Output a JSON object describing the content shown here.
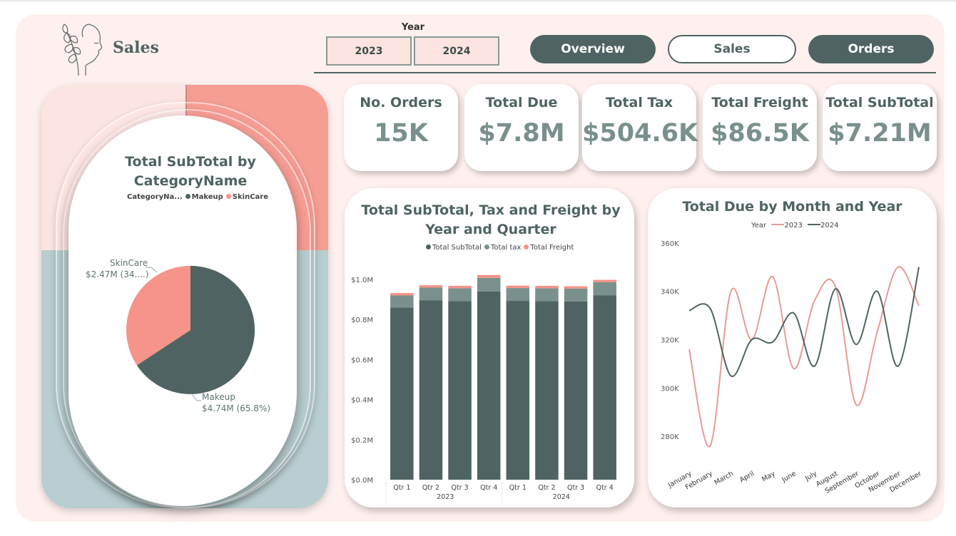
{
  "header": {
    "title": "Sales",
    "year_label": "Year",
    "years": [
      "2023",
      "2024"
    ],
    "nav": [
      {
        "label": "Overview",
        "style": "dark"
      },
      {
        "label": "Sales",
        "style": "light"
      },
      {
        "label": "Orders",
        "style": "dark"
      }
    ]
  },
  "colors": {
    "dark": "#4f6462",
    "mid": "#7a908d",
    "salmon": "#f6938a",
    "pink_bg": "#fdf0ee"
  },
  "kpis": [
    {
      "title": "No. Orders",
      "value": "15K"
    },
    {
      "title": "Total Due",
      "value": "$7.8M"
    },
    {
      "title": "Total Tax",
      "value": "$504.6K"
    },
    {
      "title": "Total Freight",
      "value": "$86.5K"
    },
    {
      "title": "Total SubTotal",
      "value": "$7.21M"
    }
  ],
  "chart_data": [
    {
      "type": "pie",
      "title": "Total SubTotal by CategoryName",
      "legend_title": "CategoryNa...",
      "legend_position": "top",
      "slices": [
        {
          "label": "Makeup",
          "value": 4.74,
          "display": "$4.74M (65.8%)",
          "color": "#4f6462"
        },
        {
          "label": "SkinCare",
          "value": 2.47,
          "display": "$2.47M (34....)",
          "color": "#f6938a"
        }
      ]
    },
    {
      "type": "bar",
      "stacked": true,
      "title": "Total SubTotal, Tax and Freight by Year and Quarter",
      "legend_position": "top",
      "categories": [
        "Qtr 1",
        "Qtr 2",
        "Qtr 3",
        "Qtr 4",
        "Qtr 1",
        "Qtr 2",
        "Qtr 3",
        "Qtr 4"
      ],
      "groups": [
        {
          "label": "2023",
          "span": 4
        },
        {
          "label": "2024",
          "span": 4
        }
      ],
      "series": [
        {
          "name": "Total SubTotal",
          "color": "#4f6462",
          "values": [
            0.86,
            0.895,
            0.892,
            0.94,
            0.893,
            0.892,
            0.89,
            0.92
          ]
        },
        {
          "name": "Total tax",
          "color": "#7a908d",
          "values": [
            0.06,
            0.064,
            0.064,
            0.068,
            0.064,
            0.064,
            0.064,
            0.066
          ]
        },
        {
          "name": "Total Freight",
          "color": "#f6938a",
          "values": [
            0.012,
            0.012,
            0.012,
            0.014,
            0.012,
            0.012,
            0.012,
            0.012
          ]
        }
      ],
      "ylim": [
        0,
        1.0
      ],
      "yticks": [
        "$0.0M",
        "$0.2M",
        "$0.4M",
        "$0.6M",
        "$0.8M",
        "$1.0M"
      ]
    },
    {
      "type": "line",
      "title": "Total Due by Month and Year",
      "legend_title": "Year",
      "legend_position": "top",
      "x": [
        "January",
        "February",
        "March",
        "April",
        "May",
        "June",
        "July",
        "August",
        "September",
        "October",
        "November",
        "December"
      ],
      "series": [
        {
          "name": "2023",
          "color": "#e79b93",
          "values": [
            316,
            276,
            340,
            320,
            346,
            308,
            336,
            342,
            293,
            323,
            350,
            334
          ]
        },
        {
          "name": "2024",
          "color": "#4f6462",
          "values": [
            332,
            333,
            305,
            320,
            319,
            331,
            309,
            341,
            318,
            340,
            309,
            350
          ]
        }
      ],
      "ylim": [
        270,
        362
      ],
      "yticks": [
        "280K",
        "300K",
        "320K",
        "340K",
        "360K"
      ]
    }
  ]
}
